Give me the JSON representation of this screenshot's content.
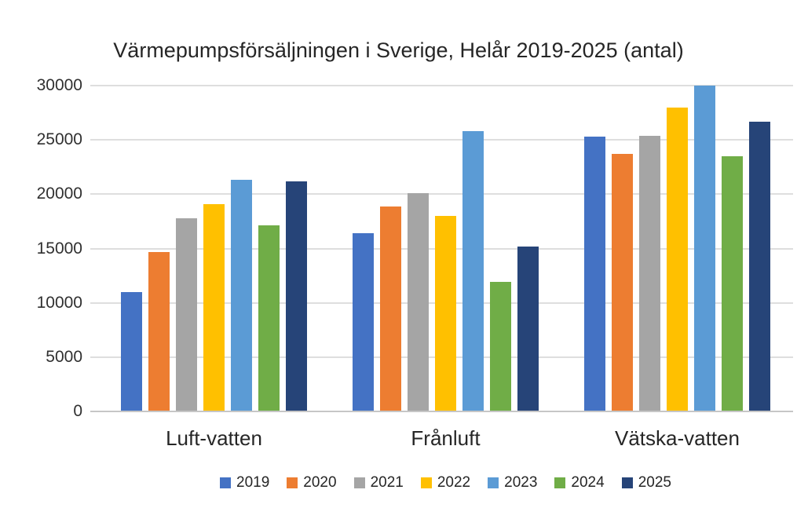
{
  "chart_data": {
    "type": "bar",
    "title": "Värmepumpsförsäljningen i Sverige, Helår 2019-2025 (antal)",
    "categories": [
      "Luft-vatten",
      "Frånluft",
      "Vätska-vatten"
    ],
    "series": [
      {
        "name": "2019",
        "color": "#4472C4",
        "values": [
          11000,
          16400,
          25300
        ]
      },
      {
        "name": "2020",
        "color": "#ED7D31",
        "values": [
          14700,
          18900,
          23700
        ]
      },
      {
        "name": "2021",
        "color": "#A5A5A5",
        "values": [
          17800,
          20100,
          25400
        ]
      },
      {
        "name": "2022",
        "color": "#FFC000",
        "values": [
          19100,
          18000,
          28000
        ]
      },
      {
        "name": "2023",
        "color": "#5B9BD5",
        "values": [
          21300,
          25800,
          30000
        ]
      },
      {
        "name": "2024",
        "color": "#70AD47",
        "values": [
          17100,
          11900,
          23500
        ]
      },
      {
        "name": "2025",
        "color": "#264478",
        "values": [
          21200,
          15200,
          26700
        ]
      }
    ],
    "xlabel": "",
    "ylabel": "",
    "ylim": [
      0,
      30000
    ],
    "yticks": [
      0,
      5000,
      10000,
      15000,
      20000,
      25000,
      30000
    ],
    "grid": true,
    "gridline_color": "#DEDEDE",
    "axis_line_color": "#C6C6C6",
    "legend_position": "bottom"
  }
}
